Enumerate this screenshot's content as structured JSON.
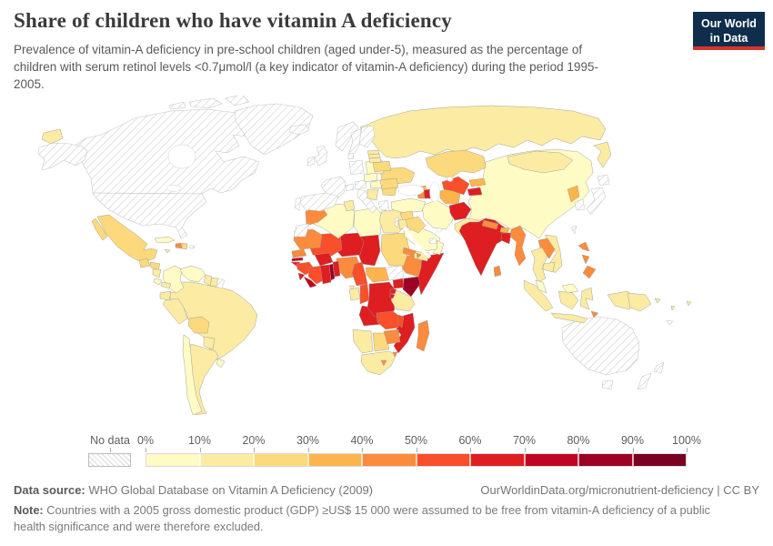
{
  "header": {
    "title": "Share of children who have vitamin A deficiency",
    "subtitle": "Prevalence of vitamin-A deficiency in pre-school children (aged under-5), measured as the percentage of children with serum retinol levels <0.7μmol/l (a key indicator of vitamin-A deficiency) during the period 1995-2005.",
    "logo": {
      "line1": "Our World",
      "line2": "in Data",
      "bg_color": "#0F2E4C",
      "accent_color": "#D8352A"
    }
  },
  "legend": {
    "no_data_label": "No data",
    "tick_labels": [
      "0%",
      "10%",
      "20%",
      "30%",
      "40%",
      "50%",
      "60%",
      "70%",
      "80%",
      "90%",
      "100%"
    ],
    "bucket_ranges": [
      "0-10%",
      "10-20%",
      "20-30%",
      "30-40%",
      "40-50%",
      "50-60%",
      "60-70%",
      "70-80%",
      "80-90%",
      "90-100%"
    ],
    "colors": [
      "#FFFBC5",
      "#FBEBA3",
      "#FBD97C",
      "#FCB44D",
      "#FB8B3D",
      "#F94F2A",
      "#DE1E20",
      "#C00522",
      "#9D0124",
      "#7A0122"
    ]
  },
  "footer": {
    "datasource_label": "Data source:",
    "datasource_text": " WHO Global Database on Vitamin A Deficiency (2009)",
    "link_text": "OurWorldinData.org/micronutrient-deficiency | CC BY",
    "note_label": "Note:",
    "note_text": " Countries with a 2005 gross domestic product (GDP) ≥US$ 15 000 were assumed to be free from vitamin-A deficiency of a public health significance and were therefore excluded."
  },
  "chart_data": {
    "type": "choropleth_map",
    "title": "Share of children who have vitamin A deficiency",
    "unit": "% of pre-school children (under 5) with serum retinol <0.7μmol/l",
    "period": "1995-2005",
    "countries": [
      {
        "name": "Canada",
        "range": "No data"
      },
      {
        "name": "United States",
        "range": "No data"
      },
      {
        "name": "Greenland",
        "range": "No data"
      },
      {
        "name": "Iceland",
        "range": "No data"
      },
      {
        "name": "United Kingdom",
        "range": "No data"
      },
      {
        "name": "Ireland",
        "range": "No data"
      },
      {
        "name": "Norway",
        "range": "No data"
      },
      {
        "name": "Sweden",
        "range": "No data"
      },
      {
        "name": "Finland",
        "range": "No data"
      },
      {
        "name": "Denmark",
        "range": "No data"
      },
      {
        "name": "Germany",
        "range": "No data"
      },
      {
        "name": "France",
        "range": "No data"
      },
      {
        "name": "Spain",
        "range": "No data"
      },
      {
        "name": "Portugal",
        "range": "No data"
      },
      {
        "name": "Italy",
        "range": "No data"
      },
      {
        "name": "Switzerland",
        "range": "No data"
      },
      {
        "name": "Austria",
        "range": "No data"
      },
      {
        "name": "Greece",
        "range": "No data"
      },
      {
        "name": "Australia",
        "range": "No data"
      },
      {
        "name": "New Zealand",
        "range": "No data"
      },
      {
        "name": "Japan",
        "range": "No data"
      },
      {
        "name": "South Korea",
        "range": "No data"
      },
      {
        "name": "Taiwan",
        "range": "No data"
      },
      {
        "name": "Israel",
        "range": "No data"
      },
      {
        "name": "United Arab Emirates",
        "range": "No data"
      },
      {
        "name": "Western Sahara",
        "range": "No data"
      },
      {
        "name": "South Sudan",
        "range": "No data"
      },
      {
        "name": "French Guiana",
        "range": "No data"
      },
      {
        "name": "Puerto Rico",
        "range": "No data"
      },
      {
        "name": "New Caledonia",
        "range": "No data"
      },
      {
        "name": "China",
        "range": "0-10%"
      },
      {
        "name": "Iran",
        "range": "0-10%"
      },
      {
        "name": "Turkey",
        "range": "0-10%"
      },
      {
        "name": "Saudi Arabia",
        "range": "0-10%"
      },
      {
        "name": "Oman",
        "range": "0-10%"
      },
      {
        "name": "Algeria",
        "range": "0-10%"
      },
      {
        "name": "Libya",
        "range": "0-10%"
      },
      {
        "name": "Colombia",
        "range": "0-10%"
      },
      {
        "name": "Venezuela",
        "range": "0-10%"
      },
      {
        "name": "Chile",
        "range": "0-10%"
      },
      {
        "name": "Uruguay",
        "range": "0-10%"
      },
      {
        "name": "Cuba",
        "range": "0-10%"
      },
      {
        "name": "Costa Rica",
        "range": "0-10%"
      },
      {
        "name": "Poland",
        "range": "0-10%"
      },
      {
        "name": "Czechia",
        "range": "0-10%"
      },
      {
        "name": "Hungary",
        "range": "0-10%"
      },
      {
        "name": "Malaysia",
        "range": "0-10%"
      },
      {
        "name": "Russia",
        "range": "10-20%"
      },
      {
        "name": "Mongolia",
        "range": "10-20%"
      },
      {
        "name": "Brazil",
        "range": "10-20%"
      },
      {
        "name": "Peru",
        "range": "10-20%"
      },
      {
        "name": "Ecuador",
        "range": "10-20%"
      },
      {
        "name": "Argentina",
        "range": "10-20%"
      },
      {
        "name": "Paraguay",
        "range": "10-20%"
      },
      {
        "name": "Panama",
        "range": "10-20%"
      },
      {
        "name": "Nicaragua",
        "range": "10-20%"
      },
      {
        "name": "Jamaica",
        "range": "10-20%"
      },
      {
        "name": "Guyana",
        "range": "10-20%"
      },
      {
        "name": "Suriname",
        "range": "10-20%"
      },
      {
        "name": "Estonia",
        "range": "10-20%"
      },
      {
        "name": "Latvia",
        "range": "10-20%"
      },
      {
        "name": "Lithuania",
        "range": "10-20%"
      },
      {
        "name": "Serbia",
        "range": "10-20%"
      },
      {
        "name": "Indonesia",
        "range": "10-20%"
      },
      {
        "name": "Papua New Guinea",
        "range": "10-20%"
      },
      {
        "name": "Vietnam",
        "range": "10-20%"
      },
      {
        "name": "Cambodia",
        "range": "10-20%"
      },
      {
        "name": "Thailand",
        "range": "10-20%"
      },
      {
        "name": "Namibia",
        "range": "10-20%"
      },
      {
        "name": "South Africa",
        "range": "10-20%"
      },
      {
        "name": "Tanzania",
        "range": "10-20%"
      },
      {
        "name": "Gabon",
        "range": "10-20%"
      },
      {
        "name": "Equatorial Guinea",
        "range": "10-20%"
      },
      {
        "name": "Tunisia",
        "range": "10-20%"
      },
      {
        "name": "Jordan",
        "range": "10-20%"
      },
      {
        "name": "Yemen",
        "range": "10-20%"
      },
      {
        "name": "Pakistan",
        "range": "10-20%"
      },
      {
        "name": "Egypt",
        "range": "10-20%"
      },
      {
        "name": "Solomon Islands",
        "range": "10-20%"
      },
      {
        "name": "Vanuatu",
        "range": "10-20%"
      },
      {
        "name": "Fiji",
        "range": "10-20%"
      },
      {
        "name": "Mexico",
        "range": "20-30%"
      },
      {
        "name": "Guatemala",
        "range": "20-30%"
      },
      {
        "name": "Honduras",
        "range": "20-30%"
      },
      {
        "name": "Ukraine",
        "range": "20-30%"
      },
      {
        "name": "Belarus",
        "range": "20-30%"
      },
      {
        "name": "Romania",
        "range": "20-30%"
      },
      {
        "name": "Bulgaria",
        "range": "20-30%"
      },
      {
        "name": "Kazakhstan",
        "range": "20-30%"
      },
      {
        "name": "Sudan",
        "range": "20-30%"
      },
      {
        "name": "Botswana",
        "range": "20-30%"
      },
      {
        "name": "Bolivia",
        "range": "20-30%"
      },
      {
        "name": "Syria",
        "range": "20-30%"
      },
      {
        "name": "Iraq",
        "range": "20-30%"
      },
      {
        "name": "Dominican Republic",
        "range": "20-30%"
      },
      {
        "name": "Turkmenistan",
        "range": "30-40%"
      },
      {
        "name": "Kyrgyzstan",
        "range": "30-40%"
      },
      {
        "name": "Georgia",
        "range": "30-40%"
      },
      {
        "name": "Bhutan",
        "range": "30-40%"
      },
      {
        "name": "North Korea",
        "range": "30-40%"
      },
      {
        "name": "Central African Republic",
        "range": "30-40%"
      },
      {
        "name": "Morocco",
        "range": "40-50%"
      },
      {
        "name": "Mauritania",
        "range": "40-50%"
      },
      {
        "name": "Senegal",
        "range": "40-50%"
      },
      {
        "name": "Eritrea",
        "range": "40-50%"
      },
      {
        "name": "Ethiopia",
        "range": "40-50%"
      },
      {
        "name": "Djibouti",
        "range": "40-50%"
      },
      {
        "name": "Zimbabwe",
        "range": "40-50%"
      },
      {
        "name": "Lesotho",
        "range": "40-50%"
      },
      {
        "name": "Eswatini",
        "range": "40-50%"
      },
      {
        "name": "Madagascar",
        "range": "40-50%"
      },
      {
        "name": "Armenia",
        "range": "40-50%"
      },
      {
        "name": "Nepal",
        "range": "40-50%"
      },
      {
        "name": "Sri Lanka",
        "range": "40-50%"
      },
      {
        "name": "Myanmar",
        "range": "40-50%"
      },
      {
        "name": "Laos",
        "range": "40-50%"
      },
      {
        "name": "Philippines",
        "range": "40-50%"
      },
      {
        "name": "Haiti",
        "range": "40-50%"
      },
      {
        "name": "Timor-Leste",
        "range": "40-50%"
      },
      {
        "name": "Nigeria",
        "range": "40-50%"
      },
      {
        "name": "Mali",
        "range": "50-60%"
      },
      {
        "name": "Guinea",
        "range": "50-60%"
      },
      {
        "name": "Cote d'Ivoire",
        "range": "50-60%"
      },
      {
        "name": "Cameroon",
        "range": "50-60%"
      },
      {
        "name": "Congo",
        "range": "50-60%"
      },
      {
        "name": "Uzbekistan",
        "range": "50-60%"
      },
      {
        "name": "Malawi",
        "range": "50-60%"
      },
      {
        "name": "Zambia",
        "range": "50-60%"
      },
      {
        "name": "Niger",
        "range": "60-70%"
      },
      {
        "name": "Chad",
        "range": "60-70%"
      },
      {
        "name": "Burkina Faso",
        "range": "60-70%"
      },
      {
        "name": "Ghana",
        "range": "60-70%"
      },
      {
        "name": "Benin",
        "range": "60-70%"
      },
      {
        "name": "Sierra Leone",
        "range": "60-70%"
      },
      {
        "name": "Guinea-Bissau",
        "range": "60-70%"
      },
      {
        "name": "Somalia",
        "range": "60-70%"
      },
      {
        "name": "Uganda",
        "range": "60-70%"
      },
      {
        "name": "Rwanda",
        "range": "60-70%"
      },
      {
        "name": "Burundi",
        "range": "60-70%"
      },
      {
        "name": "Democratic Republic of Congo",
        "range": "60-70%"
      },
      {
        "name": "Angola",
        "range": "60-70%"
      },
      {
        "name": "Mozambique",
        "range": "60-70%"
      },
      {
        "name": "India",
        "range": "60-70%"
      },
      {
        "name": "Bangladesh",
        "range": "60-70%"
      },
      {
        "name": "Afghanistan",
        "range": "60-70%"
      },
      {
        "name": "Tajikistan",
        "range": "60-70%"
      },
      {
        "name": "Azerbaijan",
        "range": "60-70%"
      },
      {
        "name": "Liberia",
        "range": "70-80%"
      },
      {
        "name": "Gambia",
        "range": "70-80%"
      },
      {
        "name": "Togo",
        "range": "80-90%"
      },
      {
        "name": "Kenya",
        "range": "80-90%"
      }
    ]
  }
}
